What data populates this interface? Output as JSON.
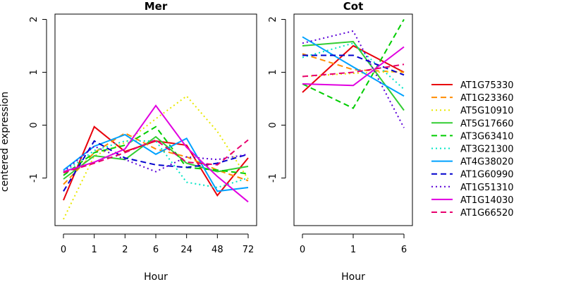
{
  "chart_data": {
    "type": "line",
    "ylabel": "centered expression",
    "xlabel": "Hour",
    "ylim": [
      -1.9,
      2.1
    ],
    "yticks": [
      -1,
      0,
      1,
      2
    ],
    "legend_position": "right",
    "panels": [
      {
        "title": "Mer",
        "xticks": [
          "0",
          "1",
          "2",
          "6",
          "24",
          "48",
          "72"
        ],
        "series": [
          {
            "name": "AT1G75330",
            "color": "#e8000b",
            "dash": "solid",
            "values": [
              -1.42,
              -0.03,
              -0.5,
              -0.3,
              -0.38,
              -1.33,
              -0.62
            ]
          },
          {
            "name": "AT1G23360",
            "color": "#ff8c00",
            "dash": "dashed",
            "values": [
              -1.12,
              -0.52,
              -0.15,
              -0.45,
              -0.6,
              -0.85,
              -1.05
            ]
          },
          {
            "name": "AT5G10910",
            "color": "#e8e800",
            "dash": "dotted",
            "values": [
              -1.78,
              -0.58,
              -0.33,
              0.12,
              0.55,
              -0.12,
              -1.02
            ]
          },
          {
            "name": "AT5G17660",
            "color": "#32cd32",
            "dash": "solid",
            "values": [
              -1.02,
              -0.58,
              -0.65,
              -0.22,
              -0.72,
              -0.88,
              -0.78
            ]
          },
          {
            "name": "AT3G63410",
            "color": "#00cd00",
            "dash": "dashed",
            "values": [
              -0.95,
              -0.52,
              -0.38,
              -0.03,
              -0.8,
              -0.85,
              -0.92
            ]
          },
          {
            "name": "AT3G21300",
            "color": "#00e5c5",
            "dash": "dotted",
            "values": [
              -0.9,
              -0.48,
              -0.3,
              -0.3,
              -1.08,
              -1.18,
              -1.0
            ]
          },
          {
            "name": "AT4G38020",
            "color": "#00a2ff",
            "dash": "solid",
            "values": [
              -0.85,
              -0.4,
              -0.18,
              -0.55,
              -0.25,
              -1.25,
              -1.18
            ]
          },
          {
            "name": "AT1G60990",
            "color": "#0000cd",
            "dash": "dashed",
            "values": [
              -1.25,
              -0.3,
              -0.62,
              -0.75,
              -0.8,
              -0.72,
              -0.55
            ]
          },
          {
            "name": "AT1G51310",
            "color": "#5a00d8",
            "dash": "dotted",
            "values": [
              -0.88,
              -0.4,
              -0.65,
              -0.88,
              -0.6,
              -0.65,
              -0.55
            ]
          },
          {
            "name": "AT1G14030",
            "color": "#e000e0",
            "dash": "solid",
            "values": [
              -0.88,
              -0.7,
              -0.45,
              0.37,
              -0.42,
              -0.97,
              -1.45
            ]
          },
          {
            "name": "AT1G66520",
            "color": "#e8006e",
            "dash": "dashed",
            "values": [
              -0.9,
              -0.72,
              -0.52,
              -0.28,
              -0.7,
              -0.75,
              -0.28
            ]
          }
        ]
      },
      {
        "title": "Cot",
        "xticks": [
          "0",
          "1",
          "6"
        ],
        "series": [
          {
            "name": "AT1G75330",
            "color": "#e8000b",
            "dash": "solid",
            "values": [
              0.62,
              1.5,
              1.0
            ]
          },
          {
            "name": "AT1G23360",
            "color": "#ff8c00",
            "dash": "dashed",
            "values": [
              1.35,
              1.05,
              1.0
            ]
          },
          {
            "name": "AT5G10910",
            "color": "#e8e800",
            "dash": "dotted",
            "values": [
              0.92,
              0.98,
              1.02
            ]
          },
          {
            "name": "AT5G17660",
            "color": "#32cd32",
            "dash": "solid",
            "values": [
              1.5,
              1.58,
              0.28
            ]
          },
          {
            "name": "AT3G63410",
            "color": "#00cd00",
            "dash": "dashed",
            "values": [
              0.78,
              0.32,
              2.0
            ]
          },
          {
            "name": "AT3G21300",
            "color": "#00e5c5",
            "dash": "dotted",
            "values": [
              1.28,
              1.55,
              0.68
            ]
          },
          {
            "name": "AT4G38020",
            "color": "#00a2ff",
            "dash": "solid",
            "values": [
              1.67,
              1.1,
              0.55
            ]
          },
          {
            "name": "AT1G60990",
            "color": "#0000cd",
            "dash": "dashed",
            "values": [
              1.32,
              1.32,
              0.95
            ]
          },
          {
            "name": "AT1G51310",
            "color": "#5a00d8",
            "dash": "dotted",
            "values": [
              1.55,
              1.78,
              -0.05
            ]
          },
          {
            "name": "AT1G14030",
            "color": "#e000e0",
            "dash": "solid",
            "values": [
              0.78,
              0.75,
              1.48
            ]
          },
          {
            "name": "AT1G66520",
            "color": "#e8006e",
            "dash": "dashed",
            "values": [
              0.92,
              1.0,
              1.15
            ]
          }
        ]
      }
    ]
  }
}
